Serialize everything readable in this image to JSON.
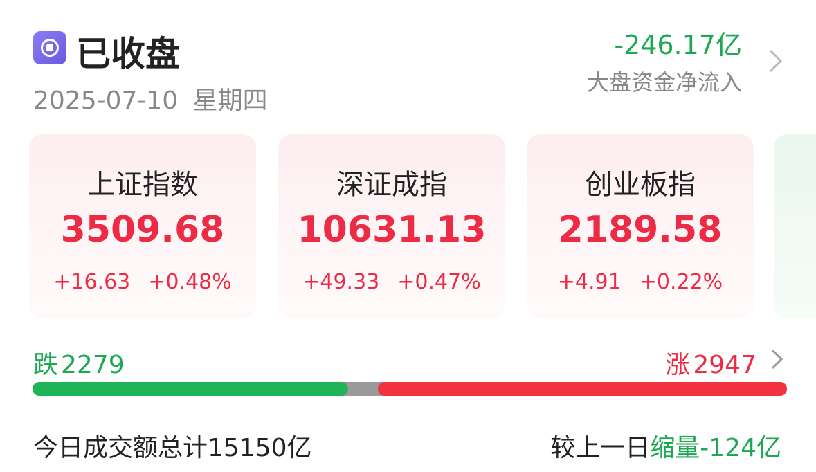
{
  "header": {
    "status": "已收盘",
    "date": "2025-07-10",
    "weekday": "星期四"
  },
  "net_flow": {
    "value": "-246.17亿",
    "label": "大盘资金净流入"
  },
  "indices": [
    {
      "name": "上证指数",
      "value": "3509.68",
      "change": "+16.63",
      "change_pct": "+0.48%"
    },
    {
      "name": "深证成指",
      "value": "10631.13",
      "change": "+49.33",
      "change_pct": "+0.47%"
    },
    {
      "name": "创业板指",
      "value": "2189.58",
      "change": "+4.91",
      "change_pct": "+0.22%"
    }
  ],
  "breadth": {
    "fall_label": "跌",
    "fall_count": 2279,
    "rise_label": "涨",
    "rise_count": 2947
  },
  "turnover": {
    "label": "今日成交额总计15150亿",
    "compare_label": "较上一日",
    "compare_trend": "缩量",
    "compare_value": "-124亿"
  }
}
